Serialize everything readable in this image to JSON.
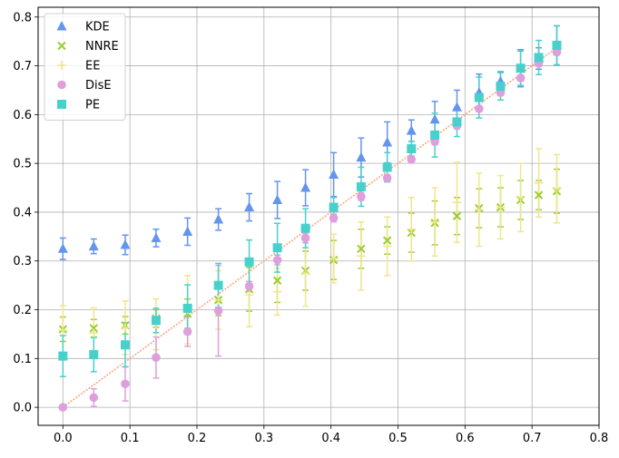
{
  "chart_data": {
    "type": "scatter",
    "title": "",
    "xlabel": "",
    "ylabel": "",
    "xlim": [
      -0.037,
      0.8
    ],
    "ylim": [
      -0.037,
      0.82
    ],
    "xticks": [
      "0.0",
      "0.1",
      "0.2",
      "0.3",
      "0.4",
      "0.5",
      "0.6",
      "0.7",
      "0.8"
    ],
    "xtick_values": [
      0.0,
      0.1,
      0.2,
      0.3,
      0.4,
      0.5,
      0.6,
      0.7,
      0.8
    ],
    "yticks": [
      "0.0",
      "0.1",
      "0.2",
      "0.3",
      "0.4",
      "0.5",
      "0.6",
      "0.7",
      "0.8"
    ],
    "ytick_values": [
      0.0,
      0.1,
      0.2,
      0.3,
      0.4,
      0.5,
      0.6,
      0.7,
      0.8
    ],
    "grid": true,
    "legend_position": "top-left",
    "x": [
      0.0,
      0.046,
      0.093,
      0.139,
      0.186,
      0.232,
      0.278,
      0.32,
      0.362,
      0.404,
      0.445,
      0.484,
      0.52,
      0.555,
      0.588,
      0.621,
      0.653,
      0.683,
      0.71,
      0.737
    ],
    "reference_line": {
      "x": [
        0.0,
        0.737
      ],
      "y": [
        0.0,
        0.737
      ],
      "color": "#ffa07a"
    },
    "series": [
      {
        "name": "KDE",
        "marker": "triangle",
        "color": "#6495ed",
        "y": [
          0.325,
          0.33,
          0.333,
          0.347,
          0.36,
          0.385,
          0.41,
          0.425,
          0.45,
          0.477,
          0.512,
          0.543,
          0.567,
          0.59,
          0.615,
          0.645,
          0.668,
          0.695,
          0.715,
          0.742
        ],
        "err": [
          0.022,
          0.015,
          0.02,
          0.018,
          0.028,
          0.022,
          0.028,
          0.038,
          0.037,
          0.045,
          0.04,
          0.042,
          0.022,
          0.037,
          0.035,
          0.038,
          0.02,
          0.038,
          0.022,
          0.04
        ]
      },
      {
        "name": "NNRE",
        "marker": "x",
        "color": "#9acd32",
        "y": [
          0.16,
          0.162,
          0.168,
          0.182,
          0.192,
          0.22,
          0.242,
          0.26,
          0.28,
          0.302,
          0.325,
          0.342,
          0.358,
          0.378,
          0.392,
          0.408,
          0.41,
          0.425,
          0.435,
          0.443
        ],
        "err": [
          0.025,
          0.018,
          0.018,
          0.018,
          0.03,
          0.032,
          0.045,
          0.045,
          0.04,
          0.04,
          0.04,
          0.028,
          0.04,
          0.045,
          0.038,
          0.04,
          0.04,
          0.04,
          0.03,
          0.045
        ]
      },
      {
        "name": "EE",
        "marker": "plus",
        "color": "#f0e68c",
        "y": [
          0.158,
          0.152,
          0.163,
          0.17,
          0.2,
          0.22,
          0.23,
          0.237,
          0.275,
          0.305,
          0.31,
          0.33,
          0.365,
          0.38,
          0.42,
          0.405,
          0.41,
          0.43,
          0.46,
          0.448
        ],
        "err": [
          0.05,
          0.052,
          0.055,
          0.052,
          0.07,
          0.06,
          0.065,
          0.048,
          0.068,
          0.05,
          0.07,
          0.06,
          0.065,
          0.07,
          0.082,
          0.075,
          0.065,
          0.07,
          0.07,
          0.07
        ]
      },
      {
        "name": "DisE",
        "marker": "circle",
        "color": "#dda0dd",
        "y": [
          0.0,
          0.02,
          0.048,
          0.102,
          0.155,
          0.198,
          0.248,
          0.302,
          0.347,
          0.388,
          0.432,
          0.47,
          0.508,
          0.545,
          0.577,
          0.612,
          0.645,
          0.675,
          0.705,
          0.728
        ],
        "err": [
          0.0,
          0.018,
          0.035,
          0.042,
          0.03,
          0.093,
          0.01,
          0.01,
          0.01,
          0.008,
          0.008,
          0.007,
          0.007,
          0.007,
          0.006,
          0.006,
          0.006,
          0.006,
          0.006,
          0.006
        ]
      },
      {
        "name": "PE",
        "marker": "square",
        "color": "#48d1cc",
        "y": [
          0.105,
          0.108,
          0.128,
          0.178,
          0.203,
          0.25,
          0.298,
          0.327,
          0.367,
          0.41,
          0.452,
          0.492,
          0.53,
          0.558,
          0.585,
          0.635,
          0.658,
          0.695,
          0.717,
          0.742
        ],
        "err": [
          0.042,
          0.035,
          0.045,
          0.025,
          0.048,
          0.045,
          0.045,
          0.05,
          0.04,
          0.02,
          0.04,
          0.03,
          0.015,
          0.045,
          0.03,
          0.042,
          0.028,
          0.035,
          0.035,
          0.04
        ]
      }
    ]
  }
}
